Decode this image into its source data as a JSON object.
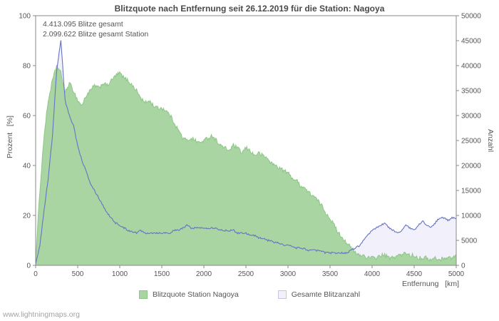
{
  "footer": {
    "watermark": "www.lightningmaps.org"
  },
  "chart_data": {
    "type": "area",
    "title": "Blitzquote nach Entfernung seit 26.12.2019 für die Station: Nagoya",
    "annotations": [
      "4.413.095 Blitze gesamt",
      "2.099.622 Blitze gesamt Station"
    ],
    "x_axis": {
      "label": "Entfernung   [km]",
      "min": 0,
      "max": 5000,
      "ticks": [
        0,
        500,
        1000,
        1500,
        2000,
        2500,
        3000,
        3500,
        4000,
        4500,
        5000
      ]
    },
    "left_axis": {
      "label": "Prozent   [%]",
      "min": 0,
      "max": 100,
      "ticks": [
        0,
        20,
        40,
        60,
        80,
        100
      ]
    },
    "right_axis": {
      "label": "Anzahl",
      "min": 0,
      "max": 50000,
      "ticks": [
        0,
        5000,
        10000,
        15000,
        20000,
        25000,
        30000,
        35000,
        40000,
        45000,
        50000
      ]
    },
    "grid": false,
    "legend_position": "bottom",
    "x": [
      0,
      50,
      100,
      150,
      200,
      250,
      300,
      350,
      400,
      450,
      500,
      550,
      600,
      650,
      700,
      750,
      800,
      850,
      900,
      950,
      1000,
      1050,
      1100,
      1150,
      1200,
      1250,
      1300,
      1350,
      1400,
      1450,
      1500,
      1550,
      1600,
      1650,
      1700,
      1750,
      1800,
      1850,
      1900,
      1950,
      2000,
      2050,
      2100,
      2150,
      2200,
      2250,
      2300,
      2350,
      2400,
      2450,
      2500,
      2550,
      2600,
      2650,
      2700,
      2750,
      2800,
      2850,
      2900,
      2950,
      3000,
      3050,
      3100,
      3150,
      3200,
      3250,
      3300,
      3350,
      3400,
      3450,
      3500,
      3550,
      3600,
      3650,
      3700,
      3750,
      3800,
      3850,
      3900,
      3950,
      4000,
      4050,
      4100,
      4150,
      4200,
      4250,
      4300,
      4350,
      4400,
      4450,
      4500,
      4550,
      4600,
      4650,
      4700,
      4750,
      4800,
      4850,
      4900,
      4950,
      5000
    ],
    "series": [
      {
        "name": "Blitzquote Station Nagoya",
        "axis": "left",
        "fill": "#a8d5a2",
        "stroke": "#8fc589",
        "legend_border": "#8fc589",
        "values": [
          2,
          30,
          52,
          66,
          74,
          80,
          77,
          69,
          73,
          70,
          66,
          64,
          68,
          70,
          72,
          71,
          73,
          72,
          74,
          76,
          77,
          75,
          74,
          72,
          70,
          67,
          65,
          66,
          64,
          63,
          63,
          62,
          60,
          57,
          54,
          51,
          50,
          51,
          50,
          49,
          50,
          51,
          52,
          50,
          48,
          47,
          46,
          48,
          47,
          45,
          47,
          46,
          44,
          45,
          44,
          43,
          41,
          40,
          39,
          38,
          37,
          35,
          34,
          32,
          31,
          29,
          28,
          26,
          24,
          21,
          19,
          16,
          13,
          11,
          9,
          7,
          5,
          4,
          4,
          3,
          3,
          3,
          4,
          4,
          3,
          3,
          4,
          4,
          5,
          4,
          4,
          3,
          3,
          3,
          2,
          3,
          2,
          3,
          3,
          3,
          4
        ]
      },
      {
        "name": "Gesamte Blitzanzahl",
        "axis": "right",
        "fill": "#f2f0fb",
        "stroke": "#6673c5",
        "legend_border": "#c9c4e0",
        "values": [
          250,
          4000,
          11000,
          17500,
          26000,
          39000,
          45000,
          33000,
          30000,
          28000,
          24000,
          21000,
          19000,
          16500,
          15000,
          13500,
          12000,
          10500,
          9500,
          8500,
          8000,
          7500,
          7000,
          6800,
          6500,
          7000,
          6500,
          6500,
          6500,
          6500,
          6500,
          6500,
          6500,
          7000,
          7000,
          7500,
          8000,
          7500,
          7500,
          7500,
          7500,
          7500,
          7500,
          7500,
          7000,
          7000,
          7000,
          7000,
          6500,
          6500,
          6500,
          6000,
          6000,
          5500,
          5500,
          5000,
          5000,
          4500,
          4500,
          4000,
          4000,
          3800,
          3500,
          3500,
          3300,
          3000,
          3000,
          3000,
          2800,
          2500,
          2500,
          2500,
          2500,
          2500,
          2500,
          3000,
          3500,
          4000,
          5000,
          6000,
          7000,
          7500,
          8000,
          8500,
          7500,
          7000,
          6500,
          7000,
          8000,
          7500,
          7000,
          8000,
          9000,
          8000,
          7500,
          8500,
          9500,
          9500,
          9000,
          9500,
          9500
        ]
      }
    ],
    "style": {
      "frame": "#8a8a8a",
      "tick_text": "#555555"
    }
  }
}
